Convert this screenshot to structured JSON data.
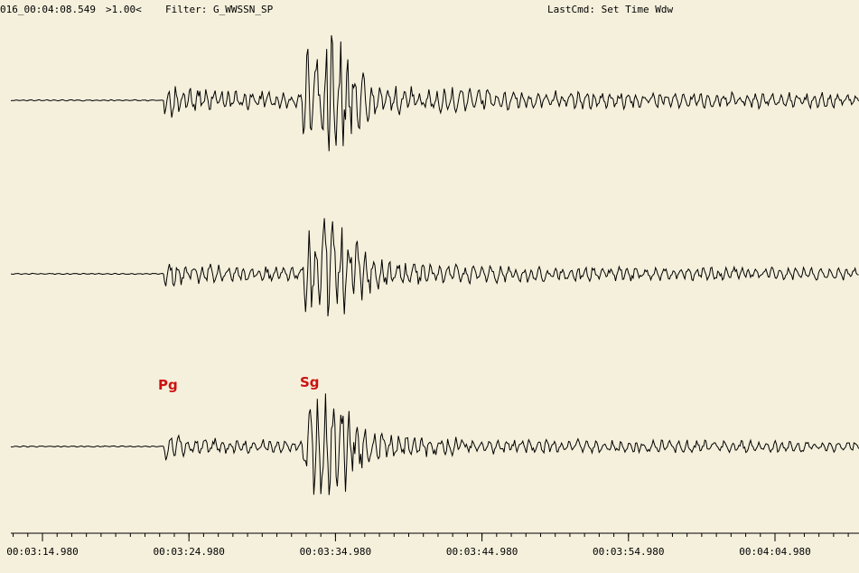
{
  "header": {
    "time": "016_00:04:08.549",
    "scale": ">1.00<",
    "filter": "Filter: G_WWSSN_SP",
    "last_command": "LastCmd: Set Time Wdw"
  },
  "phases": [
    "Pg",
    "Sg"
  ],
  "time_axis": {
    "labels": [
      "00:03:14.980",
      "00:03:24.980",
      "00:03:34.980",
      "00:03:44.980",
      "00:03:54.980",
      "00:04:04.980"
    ]
  }
}
